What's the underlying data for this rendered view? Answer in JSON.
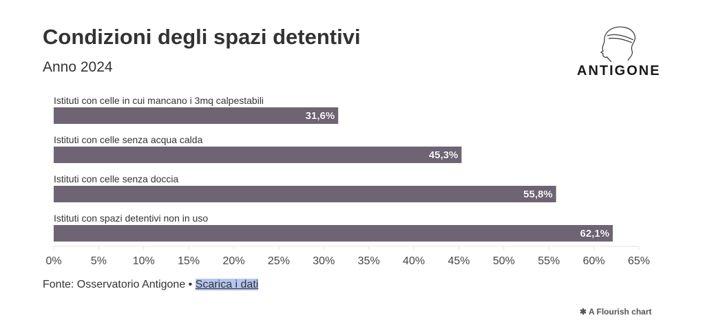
{
  "header": {
    "title": "Condizioni degli spazi detentivi",
    "subtitle": "Anno 2024"
  },
  "logo": {
    "text": "ANTIGONE"
  },
  "chart_data": {
    "type": "bar",
    "orientation": "horizontal",
    "categories": [
      "Istituti con celle in cui mancano i 3mq calpestabili",
      "Istituti con celle senza acqua calda",
      "Istituti con celle senza doccia",
      "Istituti con spazi detentivi non in uso"
    ],
    "values": [
      31.6,
      45.3,
      55.8,
      62.1
    ],
    "value_labels": [
      "31,6%",
      "45,3%",
      "55,8%",
      "62,1%"
    ],
    "xlim": [
      0,
      65
    ],
    "xticks": [
      0,
      5,
      10,
      15,
      20,
      25,
      30,
      35,
      40,
      45,
      50,
      55,
      60,
      65
    ],
    "xtick_labels": [
      "0%",
      "5%",
      "10%",
      "15%",
      "20%",
      "25%",
      "30%",
      "35%",
      "40%",
      "45%",
      "50%",
      "55%",
      "60%",
      "65%"
    ],
    "bar_color": "#6e6473",
    "grid": false
  },
  "footer": {
    "source": "Fonte: Osservatorio Antigone •",
    "link": "Scarica i dati",
    "flourish": "✱ A Flourish chart"
  }
}
